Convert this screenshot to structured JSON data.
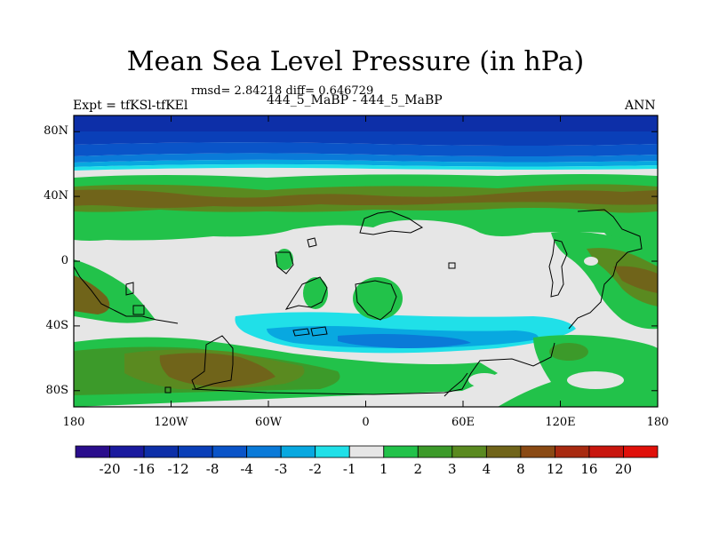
{
  "header": {
    "title": "Mean Sea Level Pressure (in hPa)",
    "stats": "rmsd= 2.84218 diff= 0.646729",
    "experiment": "Expt = tfKSl-tfKEl",
    "subtitle": "444_5_MaBP - 444_5_MaBP",
    "season": "ANN"
  },
  "axes": {
    "lat_ticks": [
      {
        "label": "80N",
        "value": 80
      },
      {
        "label": "40N",
        "value": 40
      },
      {
        "label": "0",
        "value": 0
      },
      {
        "label": "40S",
        "value": -40
      },
      {
        "label": "80S",
        "value": -80
      }
    ],
    "lon_ticks": [
      {
        "label": "180",
        "value": -180
      },
      {
        "label": "120W",
        "value": -120
      },
      {
        "label": "60W",
        "value": -60
      },
      {
        "label": "0",
        "value": 0
      },
      {
        "label": "60E",
        "value": 60
      },
      {
        "label": "120E",
        "value": 120
      },
      {
        "label": "180",
        "value": 180
      }
    ],
    "lon_range": [
      -180,
      180
    ],
    "lat_range": [
      -90,
      90
    ]
  },
  "colorbar": {
    "labels": [
      "-20",
      "-16",
      "-12",
      "-8",
      "-4",
      "-3",
      "-2",
      "-1",
      "1",
      "2",
      "3",
      "4",
      "8",
      "12",
      "16",
      "20"
    ],
    "colors": [
      "#2a0d8c",
      "#1a1a9e",
      "#0d2fa8",
      "#0a3fb8",
      "#0a54c8",
      "#0a7ad8",
      "#08a8e0",
      "#20e0e8",
      "#e6e6e6",
      "#22c24a",
      "#3c9a2a",
      "#5a8a20",
      "#70641a",
      "#8a4a14",
      "#a82a10",
      "#c8160e",
      "#e0100a"
    ]
  }
}
